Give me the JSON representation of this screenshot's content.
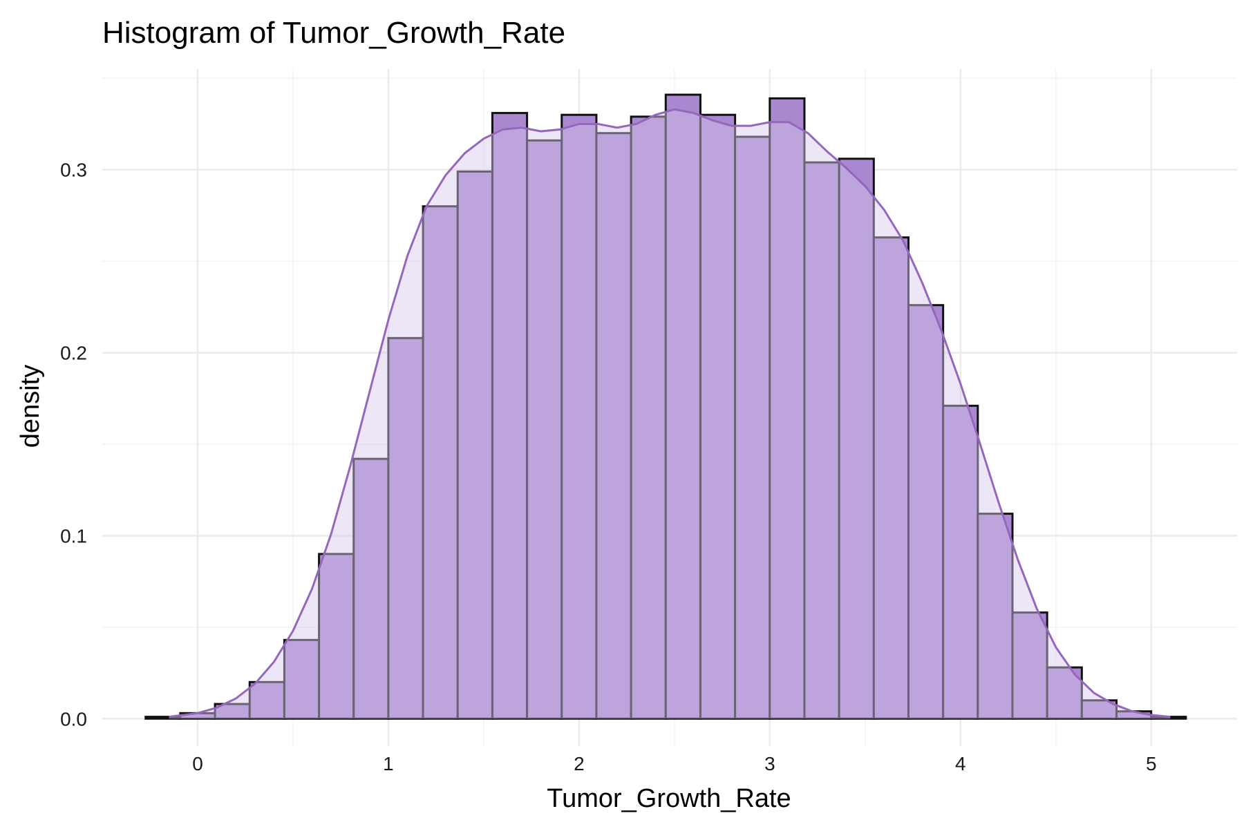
{
  "chart_data": {
    "type": "histogram",
    "title": "Histogram of Tumor_Growth_Rate",
    "xlabel": "Tumor_Growth_Rate",
    "ylabel": "density",
    "xlim": [
      -0.5,
      5.45
    ],
    "ylim": [
      -0.015,
      0.355
    ],
    "x_ticks": [
      0,
      1,
      2,
      3,
      4,
      5
    ],
    "x_tick_labels": [
      "0",
      "1",
      "2",
      "3",
      "4",
      "5"
    ],
    "y_ticks": [
      0.0,
      0.1,
      0.2,
      0.3
    ],
    "y_tick_labels": [
      "0.0",
      "0.1",
      "0.2",
      "0.3"
    ],
    "grid": true,
    "bin_width": 0.1818,
    "bin_start": -0.2727,
    "densities": [
      0.001,
      0.003,
      0.008,
      0.02,
      0.043,
      0.09,
      0.142,
      0.208,
      0.28,
      0.299,
      0.331,
      0.316,
      0.33,
      0.32,
      0.329,
      0.341,
      0.33,
      0.318,
      0.339,
      0.304,
      0.306,
      0.263,
      0.226,
      0.171,
      0.112,
      0.058,
      0.028,
      0.01,
      0.004,
      0.001
    ],
    "density_curve": {
      "x": [
        -0.15,
        0.0,
        0.1,
        0.2,
        0.3,
        0.4,
        0.5,
        0.6,
        0.7,
        0.8,
        0.9,
        1.0,
        1.1,
        1.2,
        1.3,
        1.4,
        1.5,
        1.6,
        1.7,
        1.8,
        1.9,
        2.0,
        2.1,
        2.2,
        2.3,
        2.4,
        2.5,
        2.6,
        2.7,
        2.8,
        2.9,
        3.0,
        3.1,
        3.2,
        3.3,
        3.4,
        3.5,
        3.6,
        3.7,
        3.8,
        3.9,
        4.0,
        4.1,
        4.2,
        4.3,
        4.4,
        4.5,
        4.6,
        4.7,
        4.8,
        4.9,
        5.0,
        5.1
      ],
      "y": [
        0.001,
        0.003,
        0.006,
        0.011,
        0.019,
        0.031,
        0.048,
        0.071,
        0.101,
        0.138,
        0.178,
        0.218,
        0.253,
        0.28,
        0.297,
        0.309,
        0.317,
        0.322,
        0.323,
        0.321,
        0.322,
        0.325,
        0.325,
        0.323,
        0.325,
        0.33,
        0.333,
        0.331,
        0.327,
        0.324,
        0.324,
        0.326,
        0.326,
        0.32,
        0.31,
        0.301,
        0.291,
        0.278,
        0.261,
        0.238,
        0.212,
        0.183,
        0.151,
        0.118,
        0.087,
        0.06,
        0.039,
        0.024,
        0.014,
        0.008,
        0.004,
        0.002,
        0.001
      ]
    },
    "colors": {
      "bar_fill": "#a988cf",
      "bar_outline": "#111111",
      "density_line": "#9467bd",
      "density_fill": "#d8c8ea",
      "grid": "#ebebeb"
    }
  }
}
